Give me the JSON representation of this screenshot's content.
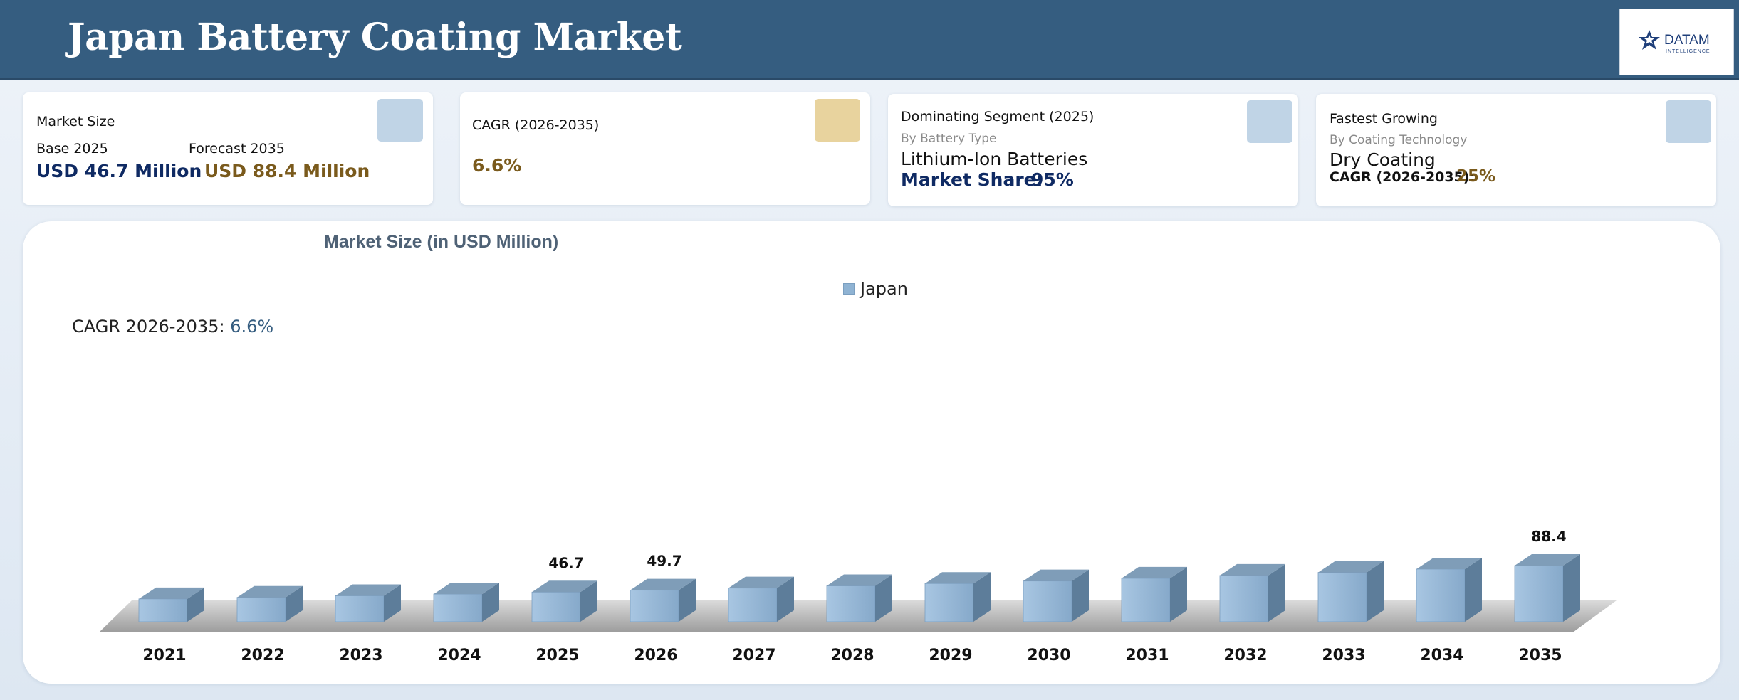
{
  "header": {
    "title": "Japan Battery Coating Market"
  },
  "logo": {
    "word": "DATAM",
    "sub": "INTELLIGENCE"
  },
  "colors": {
    "header": "#355d80",
    "navy": "#0f2a63",
    "gold": "#7a5a1c",
    "bar": "#8fb3d3"
  },
  "cards": {
    "market_size": {
      "title": "Market Size",
      "base_label": "Base 2025",
      "base_value": "USD 46.7 Million",
      "forecast_label": "Forecast 2035",
      "forecast_value": "USD 88.4 Million"
    },
    "cagr": {
      "title": "CAGR (2026-2035)",
      "value": "6.6%"
    },
    "dominating": {
      "title": "Dominating Segment (2025)",
      "sub": "By Battery Type",
      "segment": "Lithium-Ion Batteries",
      "share_label": "Market Share:",
      "share_value": "95%"
    },
    "fastest": {
      "title": "Fastest Growing",
      "sub": "By Coating Technology",
      "segment": "Dry Coating",
      "cagr_label": "CAGR (2026-2035):",
      "cagr_value": "25%"
    }
  },
  "chart_note": {
    "label": "CAGR 2026-2035:",
    "value": "6.6%"
  },
  "chart_data": {
    "type": "bar",
    "title": "Market Size (in USD Million)",
    "categories": [
      "2021",
      "2022",
      "2023",
      "2024",
      "2025",
      "2026",
      "2027",
      "2028",
      "2029",
      "2030",
      "2031",
      "2032",
      "2033",
      "2034",
      "2035"
    ],
    "series": [
      {
        "name": "Japan",
        "values": [
          36.0,
          38.4,
          40.9,
          43.6,
          46.7,
          49.7,
          53.0,
          56.5,
          60.2,
          64.2,
          68.4,
          72.9,
          77.7,
          82.9,
          88.4
        ]
      }
    ],
    "data_labels": {
      "2025": "46.7",
      "2026": "49.7",
      "2035": "88.4"
    },
    "legend_position": "top-center",
    "grid": false
  }
}
